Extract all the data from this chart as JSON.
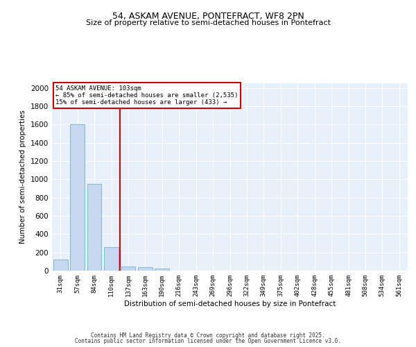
{
  "title1": "54, ASKAM AVENUE, PONTEFRACT, WF8 2PN",
  "title2": "Size of property relative to semi-detached houses in Pontefract",
  "xlabel": "Distribution of semi-detached houses by size in Pontefract",
  "ylabel": "Number of semi-detached properties",
  "bar_color": "#c5d8f0",
  "bar_edge_color": "#7aafd4",
  "background_color": "#e8f0fa",
  "grid_color": "#ffffff",
  "vline_color": "#cc0000",
  "vline_x": 3.5,
  "annotation_title": "54 ASKAM AVENUE: 103sqm",
  "annotation_line1": "← 85% of semi-detached houses are smaller (2,535)",
  "annotation_line2": "15% of semi-detached houses are larger (433) →",
  "annotation_box_color": "#cc0000",
  "footer1": "Contains HM Land Registry data © Crown copyright and database right 2025.",
  "footer2": "Contains public sector information licensed under the Open Government Licence v3.0.",
  "categories": [
    "31sqm",
    "57sqm",
    "84sqm",
    "110sqm",
    "137sqm",
    "163sqm",
    "190sqm",
    "216sqm",
    "243sqm",
    "269sqm",
    "296sqm",
    "322sqm",
    "349sqm",
    "375sqm",
    "402sqm",
    "428sqm",
    "455sqm",
    "481sqm",
    "508sqm",
    "534sqm",
    "561sqm"
  ],
  "values": [
    120,
    1600,
    950,
    260,
    45,
    38,
    20,
    0,
    0,
    0,
    0,
    0,
    0,
    0,
    0,
    0,
    0,
    0,
    0,
    0,
    0
  ],
  "ylim": [
    0,
    2050
  ],
  "yticks": [
    0,
    200,
    400,
    600,
    800,
    1000,
    1200,
    1400,
    1600,
    1800,
    2000
  ]
}
